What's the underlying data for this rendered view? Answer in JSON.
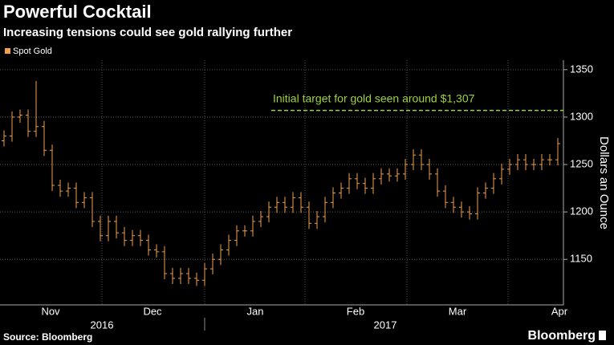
{
  "chart_data": {
    "type": "ohlc",
    "title": "Powerful Cocktail",
    "subtitle": "Increasing tensions could see gold rallying further",
    "series": [
      {
        "name": "Spot Gold",
        "color": "#f0a050",
        "open": [
          1275,
          1280,
          1300,
          1302,
          1285,
          1290,
          1265,
          1228,
          1222,
          1225,
          1210,
          1215,
          1190,
          1175,
          1190,
          1178,
          1170,
          1175,
          1170,
          1160,
          1158,
          1135,
          1130,
          1135,
          1130,
          1128,
          1140,
          1150,
          1160,
          1170,
          1180,
          1180,
          1190,
          1195,
          1205,
          1210,
          1205,
          1215,
          1205,
          1188,
          1195,
          1210,
          1220,
          1225,
          1235,
          1230,
          1225,
          1235,
          1240,
          1238,
          1240,
          1250,
          1260,
          1250,
          1240,
          1222,
          1210,
          1205,
          1200,
          1198,
          1220,
          1225,
          1235,
          1245,
          1250,
          1255,
          1250,
          1250,
          1255,
          1255
        ],
        "high": [
          1286,
          1306,
          1308,
          1308,
          1338,
          1296,
          1271,
          1234,
          1231,
          1231,
          1221,
          1221,
          1196,
          1196,
          1196,
          1184,
          1181,
          1181,
          1176,
          1166,
          1164,
          1141,
          1141,
          1141,
          1136,
          1146,
          1156,
          1166,
          1176,
          1186,
          1186,
          1196,
          1201,
          1211,
          1216,
          1216,
          1221,
          1221,
          1211,
          1201,
          1216,
          1226,
          1231,
          1241,
          1241,
          1236,
          1241,
          1246,
          1246,
          1246,
          1256,
          1266,
          1266,
          1256,
          1246,
          1228,
          1216,
          1211,
          1206,
          1226,
          1231,
          1241,
          1251,
          1256,
          1261,
          1261,
          1256,
          1261,
          1261,
          1278
        ],
        "low": [
          1269,
          1274,
          1294,
          1279,
          1279,
          1259,
          1222,
          1216,
          1216,
          1204,
          1204,
          1184,
          1169,
          1169,
          1172,
          1164,
          1164,
          1164,
          1154,
          1152,
          1129,
          1124,
          1124,
          1124,
          1122,
          1122,
          1134,
          1144,
          1154,
          1164,
          1174,
          1174,
          1184,
          1189,
          1199,
          1199,
          1199,
          1199,
          1182,
          1182,
          1189,
          1204,
          1214,
          1219,
          1224,
          1219,
          1219,
          1229,
          1232,
          1232,
          1234,
          1244,
          1244,
          1234,
          1216,
          1204,
          1199,
          1194,
          1192,
          1192,
          1214,
          1219,
          1229,
          1239,
          1244,
          1244,
          1244,
          1244,
          1249,
          1249
        ],
        "close": [
          1280,
          1300,
          1302,
          1285,
          1290,
          1265,
          1228,
          1222,
          1225,
          1210,
          1215,
          1190,
          1175,
          1190,
          1178,
          1170,
          1175,
          1170,
          1160,
          1158,
          1135,
          1130,
          1135,
          1130,
          1128,
          1140,
          1150,
          1160,
          1170,
          1180,
          1180,
          1190,
          1195,
          1205,
          1210,
          1205,
          1215,
          1205,
          1188,
          1195,
          1210,
          1220,
          1225,
          1235,
          1230,
          1225,
          1235,
          1240,
          1238,
          1240,
          1250,
          1260,
          1250,
          1240,
          1222,
          1210,
          1205,
          1200,
          1198,
          1220,
          1225,
          1235,
          1245,
          1250,
          1255,
          1250,
          1250,
          1255,
          1255,
          1272
        ]
      }
    ],
    "month_labels": [
      "Nov",
      "Dec",
      "Jan",
      "Feb",
      "Mar",
      "Apr"
    ],
    "year_labels": [
      "2016",
      "2017"
    ],
    "ylim": [
      1102,
      1360
    ],
    "yticks": [
      1150,
      1200,
      1250,
      1300,
      1350
    ],
    "ylabel": "Dollars an Ounce",
    "target": {
      "value": 1307,
      "label": "Initial target for gold seen around $1,307",
      "color": "#9fd23c"
    },
    "grid": true,
    "source": "Source: Bloomberg",
    "brand": "Bloomberg"
  }
}
